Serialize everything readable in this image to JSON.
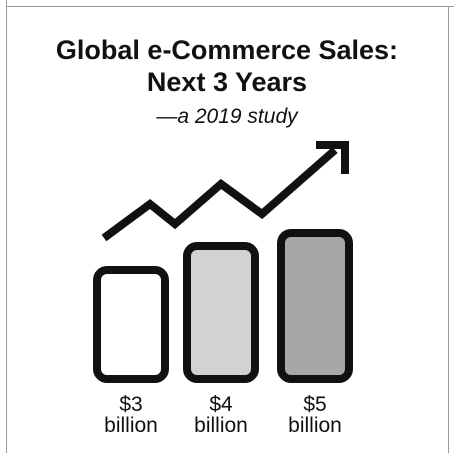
{
  "chart_data": {
    "type": "bar",
    "title": "Global e-Commerce Sales:",
    "title_line2": "Next 3 Years",
    "subtitle": "—a 2019 study",
    "categories": [
      "$3",
      "$4",
      "$5"
    ],
    "category_units": [
      "billion",
      "billion",
      "billion"
    ],
    "values": [
      3,
      4,
      5
    ],
    "bar_colors": [
      "#ffffff",
      "#d2d2d2",
      "#a7a7a7"
    ],
    "outline_color": "#111111",
    "trend_arrow": "trend-up-arrow-icon",
    "ylim": [
      0,
      5
    ]
  }
}
